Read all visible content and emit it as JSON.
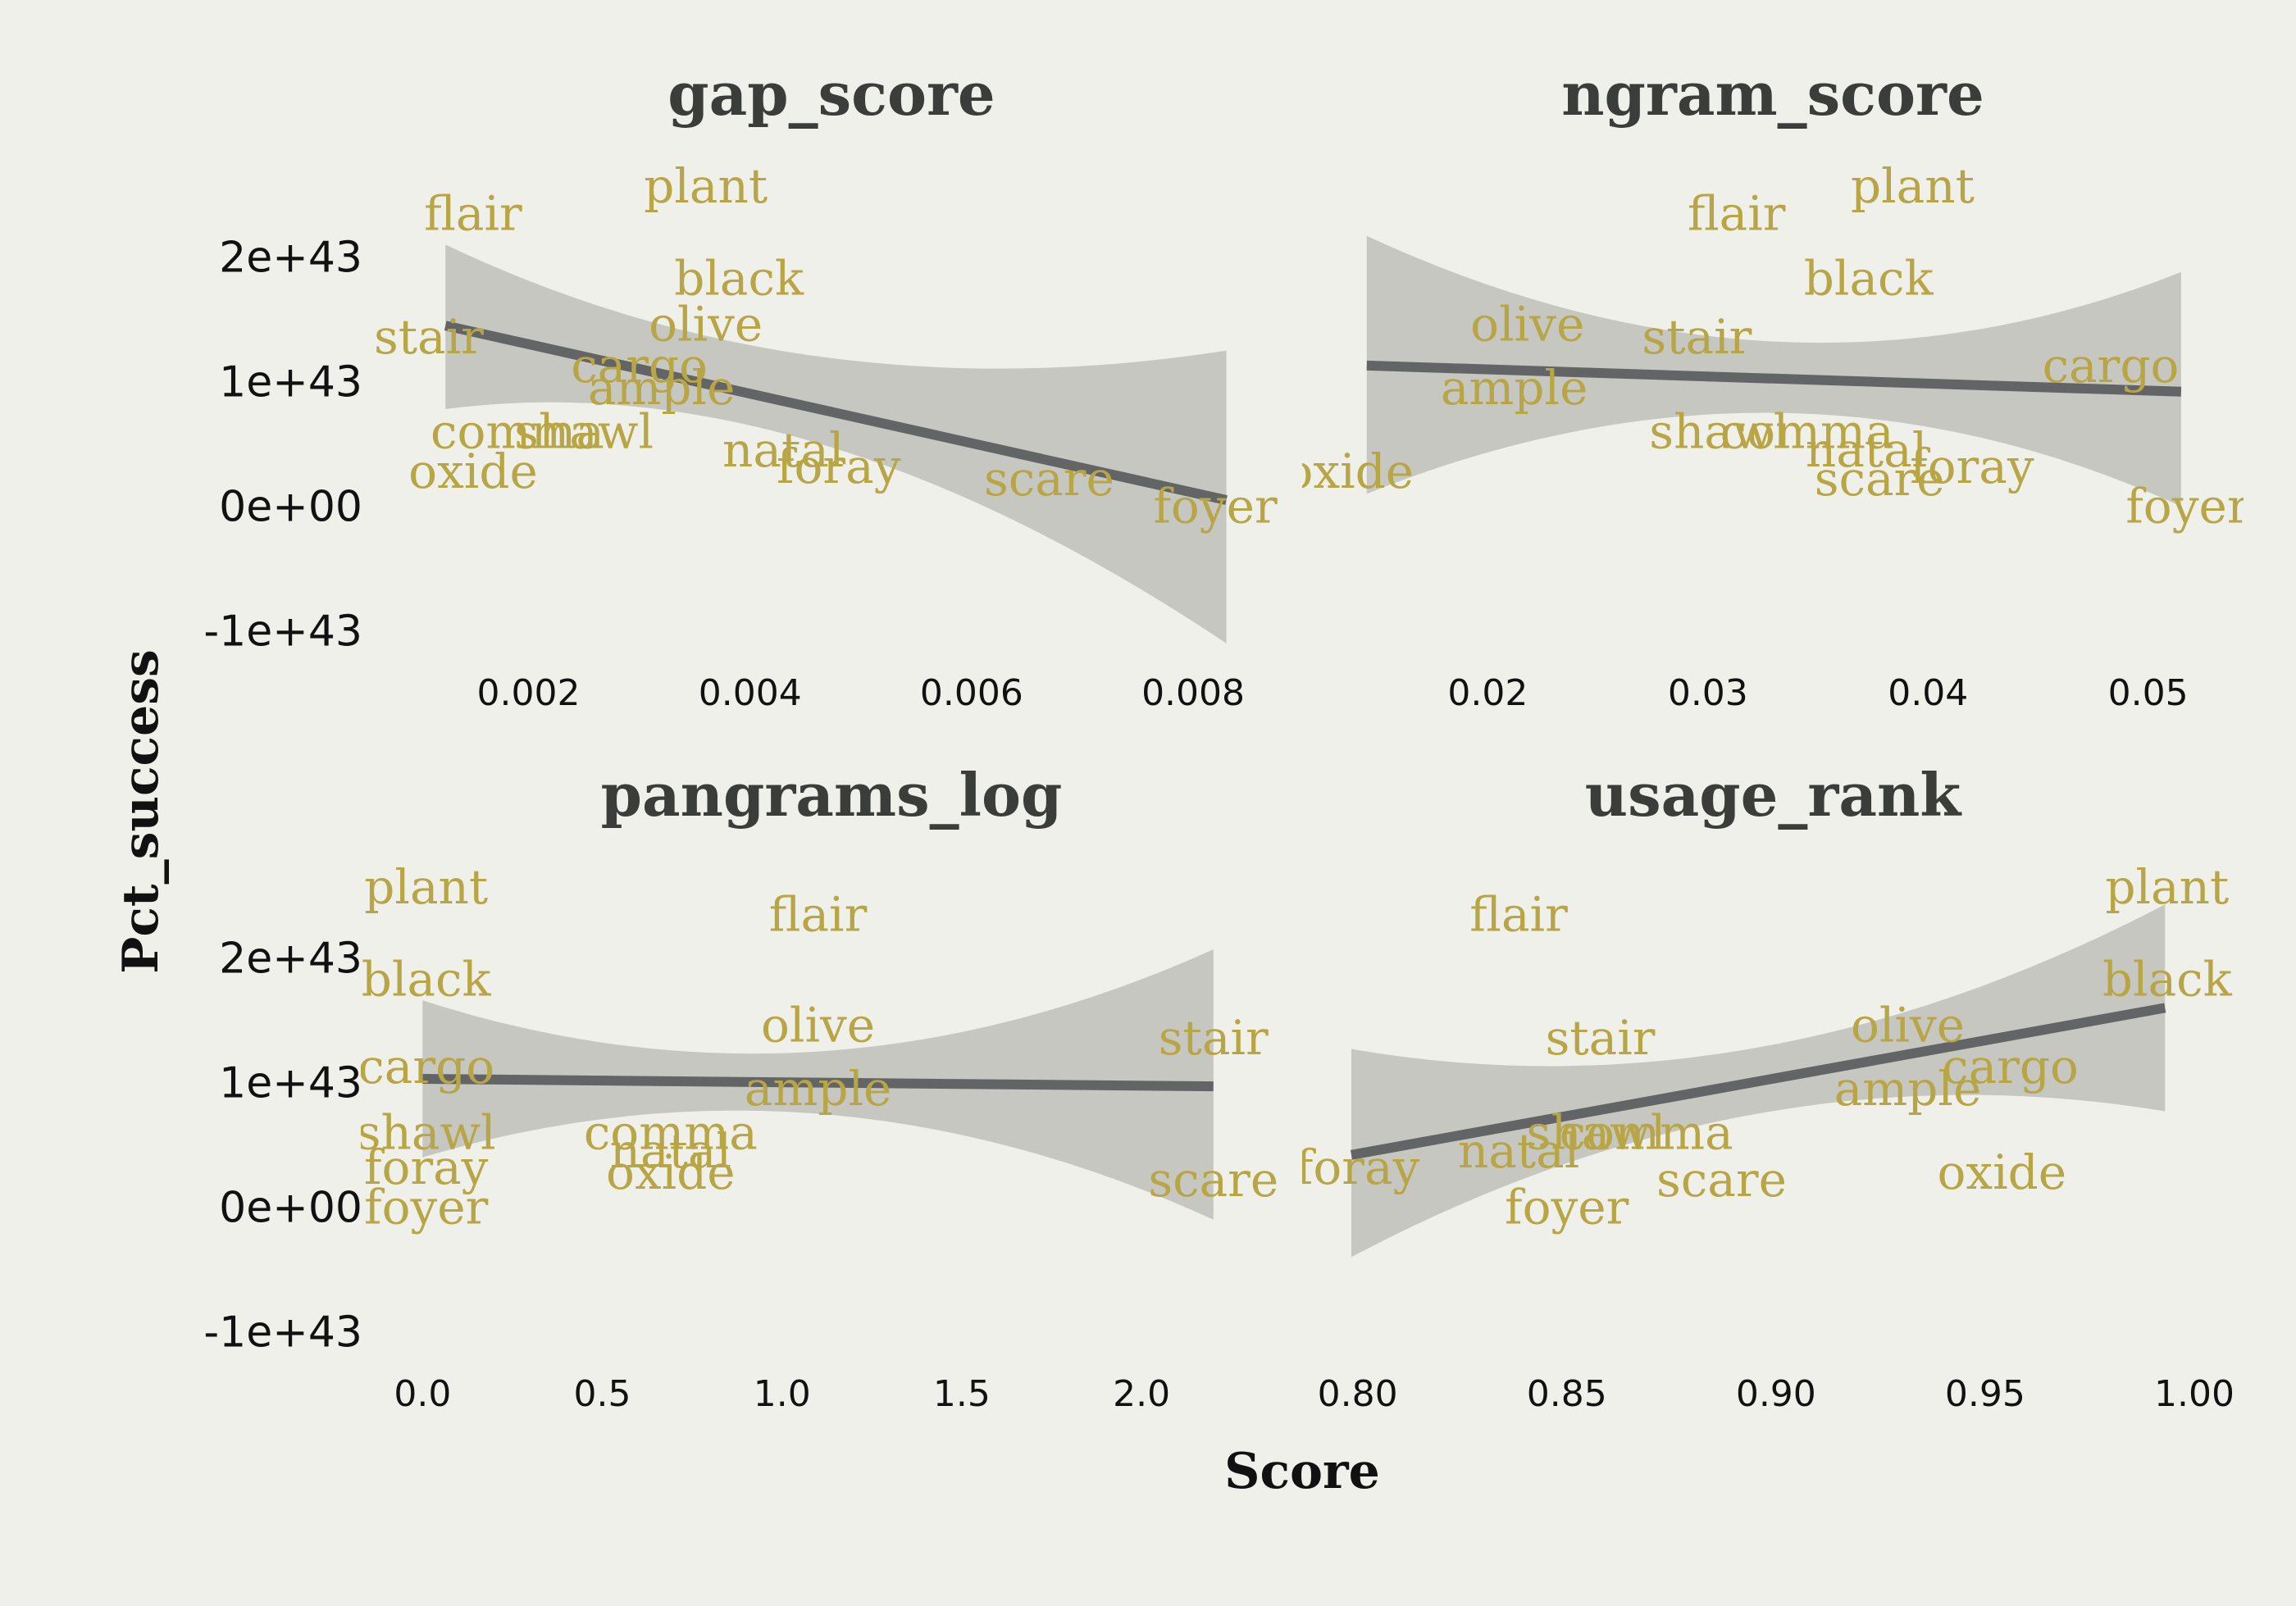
{
  "chart_data": {
    "type": "scatter",
    "xlabel": "Score",
    "ylabel": "Pct_success",
    "y_ticks": [
      "2e+43",
      "1e+43",
      "0e+00",
      "-1e+43"
    ],
    "y_tick_values": [
      2e+43,
      1e+43,
      0,
      -1e+43
    ],
    "ylim": [
      -1.2e+43,
      2.55e+43
    ],
    "colors": {
      "label": "#b8a545",
      "band": "#c6c7c1",
      "line": "#636466",
      "background": "#f0f0ea"
    },
    "facets": [
      {
        "title": "gap_score",
        "xlim": [
          0.00093,
          0.00854
        ],
        "x_ticks": [
          "0.002",
          "0.004",
          "0.006",
          "0.008"
        ],
        "x_tick_values": [
          0.002,
          0.004,
          0.006,
          0.008
        ],
        "fit": {
          "x": [
            0.00125,
            0.0045,
            0.0083
          ],
          "y": [
            1.45e+43,
            7.8e+42,
            5e+41
          ],
          "lower": [
            7.8e+42,
            5e+42,
            -1.1e+43
          ],
          "upper": [
            2.1e+43,
            1.2e+43,
            1.25e+43
          ]
        },
        "points": [
          {
            "word": "flair",
            "x": 0.0015,
            "y": 2.35e+43
          },
          {
            "word": "plant",
            "x": 0.0036,
            "y": 2.57e+43
          },
          {
            "word": "black",
            "x": 0.0039,
            "y": 1.83e+43
          },
          {
            "word": "olive",
            "x": 0.0036,
            "y": 1.46e+43
          },
          {
            "word": "stair",
            "x": 0.0011,
            "y": 1.36e+43
          },
          {
            "word": "cargo",
            "x": 0.003,
            "y": 1.13e+43
          },
          {
            "word": "ample",
            "x": 0.0032,
            "y": 9.5e+42
          },
          {
            "word": "comma",
            "x": 0.0019,
            "y": 6e+42
          },
          {
            "word": "shawl",
            "x": 0.0025,
            "y": 6e+42
          },
          {
            "word": "natal",
            "x": 0.0043,
            "y": 4.5e+42
          },
          {
            "word": "foray",
            "x": 0.0048,
            "y": 3.2e+42
          },
          {
            "word": "oxide",
            "x": 0.0015,
            "y": 2.8e+42
          },
          {
            "word": "scare",
            "x": 0.0067,
            "y": 2.2e+42
          },
          {
            "word": "foyer",
            "x": 0.0082,
            "y": 0.0
          }
        ]
      },
      {
        "title": "ngram_score",
        "xlim": [
          0.0138,
          0.0521
        ],
        "x_ticks": [
          "0.02",
          "0.03",
          "0.04",
          "0.05"
        ],
        "x_tick_values": [
          0.02,
          0.03,
          0.04,
          0.05
        ],
        "fit": {
          "x": [
            0.0145,
            0.0335,
            0.0515
          ],
          "y": [
            1.13e+43,
            1.03e+43,
            9.2e+42
          ],
          "lower": [
            1e+42,
            7.5e+42,
            0.0
          ],
          "upper": [
            2.17e+43,
            1.32e+43,
            1.88e+43
          ]
        },
        "points": [
          {
            "word": "plant",
            "x": 0.0393,
            "y": 2.57e+43
          },
          {
            "word": "flair",
            "x": 0.0313,
            "y": 2.35e+43
          },
          {
            "word": "black",
            "x": 0.0373,
            "y": 1.83e+43
          },
          {
            "word": "olive",
            "x": 0.0218,
            "y": 1.46e+43
          },
          {
            "word": "stair",
            "x": 0.0295,
            "y": 1.36e+43
          },
          {
            "word": "cargo",
            "x": 0.0483,
            "y": 1.13e+43
          },
          {
            "word": "ample",
            "x": 0.0212,
            "y": 9.5e+42
          },
          {
            "word": "shawl",
            "x": 0.0305,
            "y": 6e+42
          },
          {
            "word": "comma",
            "x": 0.0345,
            "y": 6e+42
          },
          {
            "word": "natal",
            "x": 0.0372,
            "y": 4.5e+42
          },
          {
            "word": "foray",
            "x": 0.042,
            "y": 3.2e+42
          },
          {
            "word": "oxide",
            "x": 0.0137,
            "y": 2.8e+42
          },
          {
            "word": "scare",
            "x": 0.0378,
            "y": 2.2e+42
          },
          {
            "word": "foyer",
            "x": 0.0518,
            "y": 0.0
          }
        ]
      },
      {
        "title": "pangrams_log",
        "xlim": [
          -0.035,
          2.31
        ],
        "x_ticks": [
          "0.0",
          "0.5",
          "1.0",
          "1.5",
          "2.0"
        ],
        "x_tick_values": [
          0.0,
          0.5,
          1.0,
          1.5,
          2.0
        ],
        "fit": {
          "x": [
            0.0,
            1.1,
            2.2
          ],
          "y": [
            1.03e+43,
            1e+43,
            9.7e+42
          ],
          "lower": [
            4e+42,
            7.5e+42,
            -1e+42
          ],
          "upper": [
            1.66e+43,
            1.25e+43,
            2.07e+43
          ]
        },
        "points": [
          {
            "word": "plant",
            "x": 0.01,
            "y": 2.57e+43
          },
          {
            "word": "flair",
            "x": 1.1,
            "y": 2.35e+43
          },
          {
            "word": "black",
            "x": 0.01,
            "y": 1.83e+43
          },
          {
            "word": "olive",
            "x": 1.1,
            "y": 1.46e+43
          },
          {
            "word": "stair",
            "x": 2.2,
            "y": 1.36e+43
          },
          {
            "word": "cargo",
            "x": 0.01,
            "y": 1.13e+43
          },
          {
            "word": "ample",
            "x": 1.1,
            "y": 9.5e+42
          },
          {
            "word": "shawl",
            "x": 0.01,
            "y": 6e+42
          },
          {
            "word": "comma",
            "x": 0.69,
            "y": 6e+42
          },
          {
            "word": "natal",
            "x": 0.69,
            "y": 4.5e+42
          },
          {
            "word": "foray",
            "x": 0.01,
            "y": 3.2e+42
          },
          {
            "word": "oxide",
            "x": 0.69,
            "y": 2.8e+42
          },
          {
            "word": "foyer",
            "x": 0.01,
            "y": 0.0
          },
          {
            "word": "scare",
            "x": 2.2,
            "y": 2.2e+42
          }
        ]
      },
      {
        "title": "usage_rank",
        "xlim": [
          0.7985,
          1.0
        ],
        "x_ticks": [
          "0.80",
          "0.85",
          "0.90",
          "0.95",
          "1.00"
        ],
        "x_tick_values": [
          0.8,
          0.85,
          0.9,
          0.95,
          1.0
        ],
        "fit": {
          "x": [
            0.7985,
            0.895,
            0.993
          ],
          "y": [
            4.2e+42,
            1.01e+43,
            1.6e+43
          ],
          "lower": [
            -4e+42,
            7.5e+42,
            7.7e+42
          ],
          "upper": [
            1.27e+43,
            1.28e+43,
            2.43e+43
          ]
        },
        "points": [
          {
            "word": "plant",
            "x": 0.9935,
            "y": 2.57e+43
          },
          {
            "word": "flair",
            "x": 0.8385,
            "y": 2.35e+43
          },
          {
            "word": "black",
            "x": 0.9935,
            "y": 1.83e+43
          },
          {
            "word": "olive",
            "x": 0.9315,
            "y": 1.46e+43
          },
          {
            "word": "stair",
            "x": 0.858,
            "y": 1.36e+43
          },
          {
            "word": "cargo",
            "x": 0.956,
            "y": 1.13e+43
          },
          {
            "word": "ample",
            "x": 0.9315,
            "y": 9.5e+42
          },
          {
            "word": "shawl",
            "x": 0.857,
            "y": 6e+42
          },
          {
            "word": "comma",
            "x": 0.869,
            "y": 6e+42
          },
          {
            "word": "natal",
            "x": 0.8385,
            "y": 4.5e+42
          },
          {
            "word": "foray",
            "x": 0.8,
            "y": 3.2e+42
          },
          {
            "word": "scare",
            "x": 0.887,
            "y": 2.2e+42
          },
          {
            "word": "oxide",
            "x": 0.954,
            "y": 2.8e+42
          },
          {
            "word": "foyer",
            "x": 0.85,
            "y": 0.0
          }
        ]
      }
    ]
  }
}
